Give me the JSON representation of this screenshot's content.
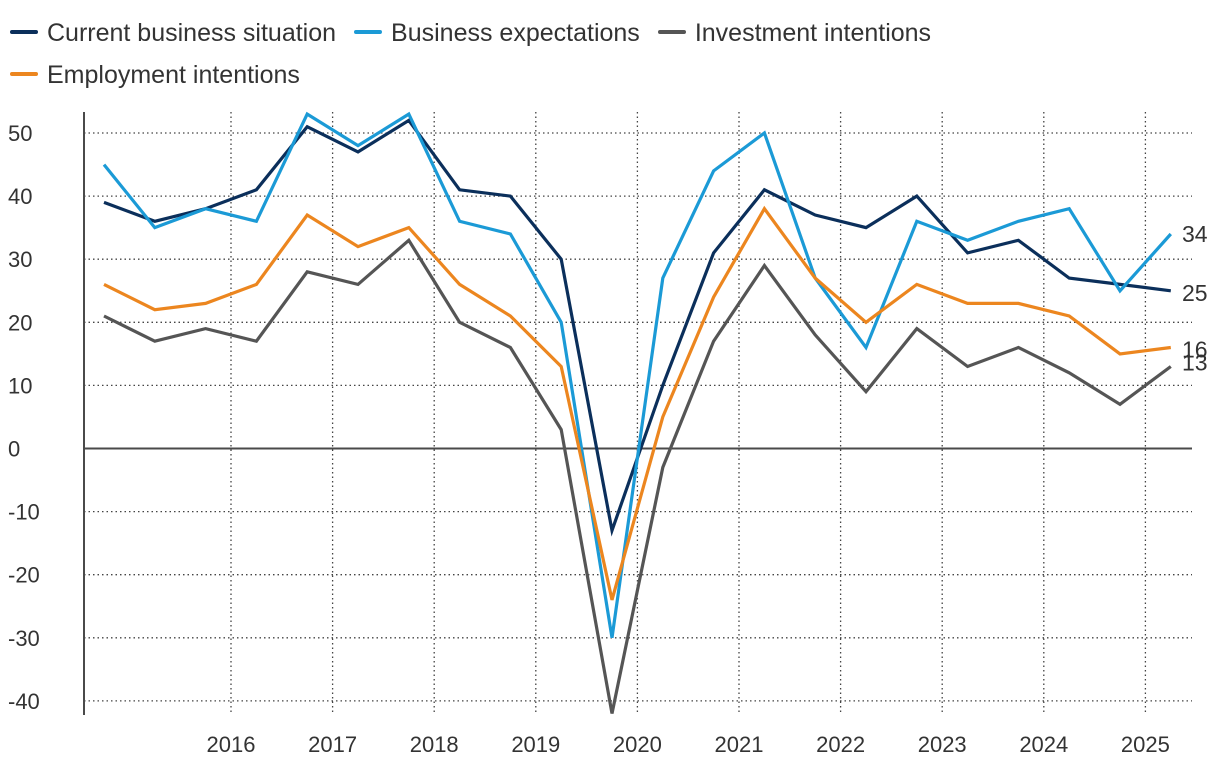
{
  "chart_data": {
    "type": "line",
    "title": "",
    "xlabel": "",
    "ylabel": "",
    "ylim": [
      -40,
      50
    ],
    "y_ticks": [
      -40,
      -30,
      -20,
      -10,
      0,
      10,
      20,
      30,
      40,
      50
    ],
    "grid": true,
    "legend_position": "top",
    "x": [
      2015.25,
      2015.75,
      2016.25,
      2016.75,
      2017.25,
      2017.75,
      2018.25,
      2018.75,
      2019.25,
      2019.75,
      2020.25,
      2020.75,
      2021.25,
      2021.75,
      2022.25,
      2022.75,
      2023.25,
      2023.75,
      2024.25,
      2024.75,
      2025.25,
      2025.75
    ],
    "x_tick_labels": [
      "2016",
      "2017",
      "2018",
      "2019",
      "2020",
      "2021",
      "2022",
      "2023",
      "2024",
      "2025"
    ],
    "series": [
      {
        "name": "Current business situation",
        "color": "#0b2f5b",
        "end_label": "25",
        "values": [
          39,
          36,
          38,
          41,
          51,
          47,
          52,
          41,
          40,
          30,
          -13,
          10,
          31,
          41,
          37,
          35,
          40,
          31,
          33,
          27,
          26,
          25
        ]
      },
      {
        "name": "Business expectations",
        "color": "#1b9ad6",
        "end_label": "34",
        "values": [
          45,
          35,
          38,
          36,
          53,
          48,
          53,
          36,
          34,
          20,
          -30,
          27,
          44,
          50,
          27,
          16,
          36,
          33,
          36,
          38,
          25,
          34
        ]
      },
      {
        "name": "Investment intentions",
        "color": "#555555",
        "end_label": "13",
        "values": [
          21,
          17,
          19,
          17,
          28,
          26,
          33,
          20,
          16,
          3,
          -42,
          -3,
          17,
          29,
          18,
          9,
          19,
          13,
          16,
          12,
          7,
          13
        ]
      },
      {
        "name": "Employment intentions",
        "color": "#ec861f",
        "end_label": "16",
        "values": [
          26,
          22,
          23,
          26,
          37,
          32,
          35,
          26,
          21,
          13,
          -24,
          5,
          24,
          38,
          27,
          20,
          26,
          23,
          23,
          21,
          15,
          16
        ]
      }
    ]
  }
}
